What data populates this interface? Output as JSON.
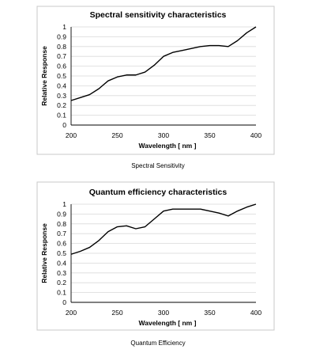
{
  "chart_data": [
    {
      "type": "line",
      "title": "Spectral sensitivity characteristics",
      "xlabel": "Wavelength [ nm ]",
      "ylabel": "Relative Response",
      "xlim": [
        200,
        400
      ],
      "ylim": [
        0,
        1
      ],
      "xticks": [
        "200",
        "250",
        "300",
        "350",
        "400"
      ],
      "yticks": [
        "0",
        "0.1",
        "0.2",
        "0.3",
        "0.4",
        "0.5",
        "0.6",
        "0.7",
        "0.8",
        "0.9",
        "1"
      ],
      "grid": "horizontal",
      "x": [
        200,
        210,
        220,
        230,
        240,
        250,
        260,
        270,
        280,
        290,
        300,
        310,
        320,
        330,
        340,
        350,
        360,
        370,
        380,
        390,
        400
      ],
      "series": [
        {
          "values": [
            0.25,
            0.28,
            0.31,
            0.37,
            0.45,
            0.49,
            0.51,
            0.51,
            0.54,
            0.61,
            0.7,
            0.74,
            0.76,
            0.78,
            0.8,
            0.81,
            0.81,
            0.8,
            0.86,
            0.94,
            1.0
          ]
        }
      ],
      "caption": "Spectral Sensitivity"
    },
    {
      "type": "line",
      "title": "Quantum efficiency characteristics",
      "xlabel": "Wavelength [ nm ]",
      "ylabel": "Relative Response",
      "xlim": [
        200,
        400
      ],
      "ylim": [
        0,
        1
      ],
      "xticks": [
        "200",
        "250",
        "300",
        "350",
        "400"
      ],
      "yticks": [
        "0",
        "0.1",
        "0.2",
        "0.3",
        "0.4",
        "0.5",
        "0.6",
        "0.7",
        "0.8",
        "0.9",
        "1"
      ],
      "grid": "horizontal",
      "x": [
        200,
        210,
        220,
        230,
        240,
        250,
        260,
        270,
        280,
        290,
        300,
        310,
        320,
        330,
        340,
        350,
        360,
        370,
        380,
        390,
        400
      ],
      "series": [
        {
          "values": [
            0.49,
            0.52,
            0.56,
            0.63,
            0.72,
            0.77,
            0.78,
            0.75,
            0.77,
            0.85,
            0.93,
            0.95,
            0.95,
            0.95,
            0.95,
            0.93,
            0.91,
            0.88,
            0.93,
            0.97,
            1.0
          ]
        }
      ],
      "caption": "Quantum Efficiency"
    }
  ]
}
